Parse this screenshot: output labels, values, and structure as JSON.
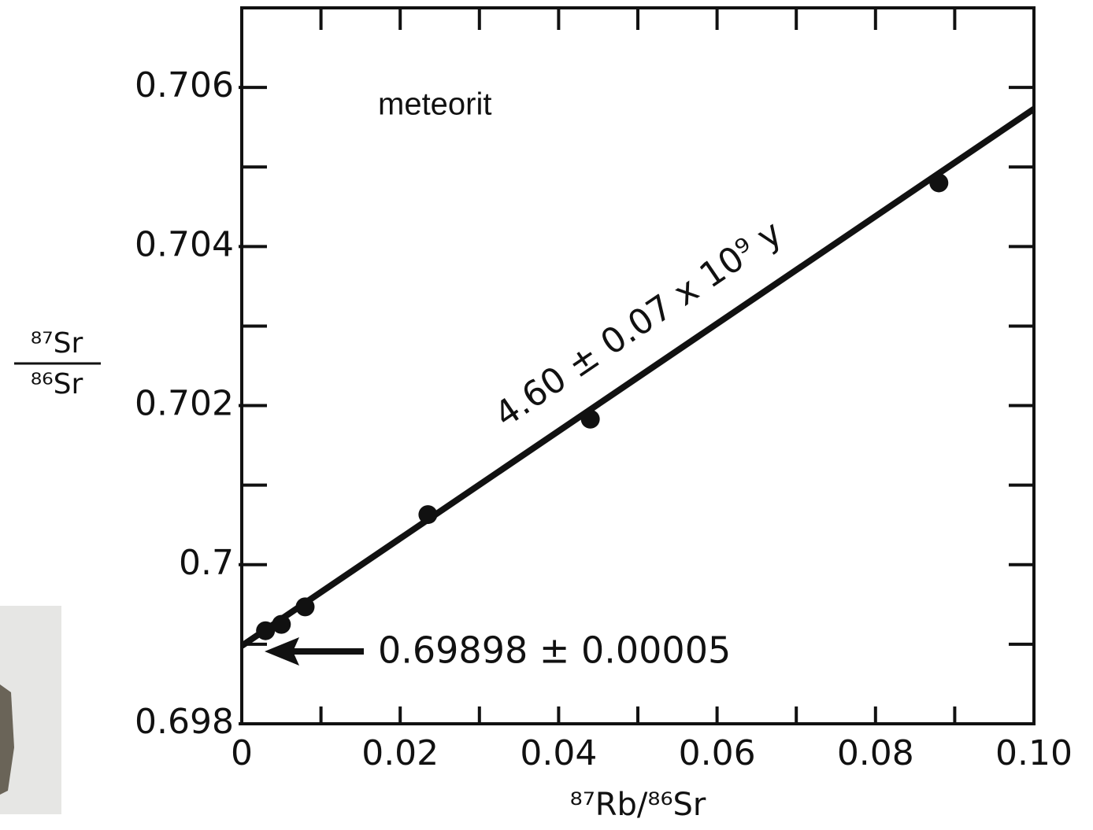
{
  "chart_data": {
    "type": "scatter",
    "title": "meteorit",
    "xlabel": "⁸⁷Rb/⁸⁶Sr",
    "ylabel_numerator": "⁸⁷Sr",
    "ylabel_denominator": "⁸⁶Sr",
    "x": [
      0.003,
      0.005,
      0.008,
      0.0235,
      0.044,
      0.088
    ],
    "y": [
      0.69917,
      0.69925,
      0.69947,
      0.70063,
      0.70183,
      0.7048
    ],
    "color": "#111111",
    "fit": {
      "x": [
        0,
        0.1
      ],
      "y": [
        0.69898,
        0.70573
      ],
      "label": "4.60 ± 0.07 x 10⁹ y"
    },
    "intercept_annotation": "0.69898 ± 0.00005",
    "xlim": [
      0,
      0.1
    ],
    "ylim": [
      0.698,
      0.707
    ],
    "xticks": [
      0,
      0.02,
      0.04,
      0.06,
      0.08,
      {
        "value": 0.1,
        "label": "0.10"
      }
    ],
    "xticks_minor": [
      0.01,
      0.03,
      0.05,
      0.07,
      0.09
    ],
    "yticks": [
      0.698,
      0.7,
      0.702,
      0.704,
      0.706
    ],
    "yticks_minor": [
      0.699,
      0.701,
      0.703,
      0.705
    ]
  }
}
